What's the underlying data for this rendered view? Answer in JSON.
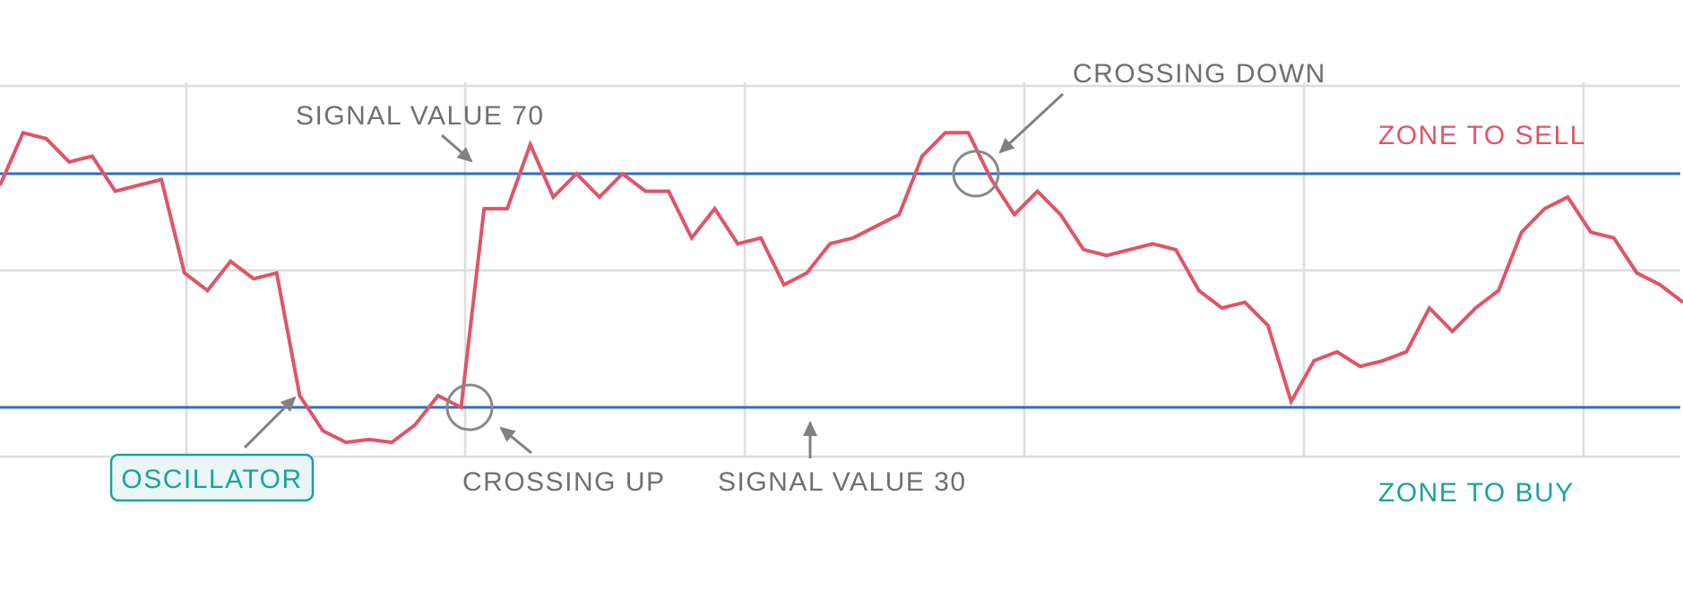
{
  "labels": {
    "signal_70": "SIGNAL VALUE 70",
    "crossing_down": "CROSSING DOWN",
    "zone_sell": "ZONE TO SELL",
    "oscillator": "OSCILLATOR",
    "crossing_up": "CROSSING UP",
    "signal_30": "SIGNAL VALUE 30",
    "zone_buy": "ZONE TO BUY"
  },
  "colors": {
    "oscillator_line": "#e05468",
    "signal_line": "#2e6fbe",
    "grid": "#dddddd",
    "annotation_text": "#6f6f6f",
    "arrow": "#808080",
    "sell": "#e05468",
    "buy": "#1aa39a",
    "oscillator_badge_bg": "#e9f6f5"
  },
  "chart_data": {
    "type": "line",
    "signal_levels": [
      70,
      30
    ],
    "series": [
      {
        "values": [
          68,
          77,
          76,
          72,
          73,
          67,
          68,
          69,
          53,
          50,
          55,
          52,
          53,
          32,
          26,
          24,
          24.5,
          24,
          27,
          32,
          30,
          64,
          64,
          75,
          66,
          70,
          66,
          70,
          67,
          67,
          59,
          64,
          58,
          59,
          51,
          53,
          58,
          59,
          61,
          63,
          73,
          77,
          77,
          69,
          63,
          67,
          63,
          57,
          56,
          57,
          58,
          57,
          50,
          47,
          48,
          44,
          31,
          38,
          39.5,
          37,
          38,
          39.5,
          47,
          43,
          47,
          50,
          60,
          64,
          66,
          60,
          59,
          53,
          51,
          48
        ]
      }
    ]
  }
}
